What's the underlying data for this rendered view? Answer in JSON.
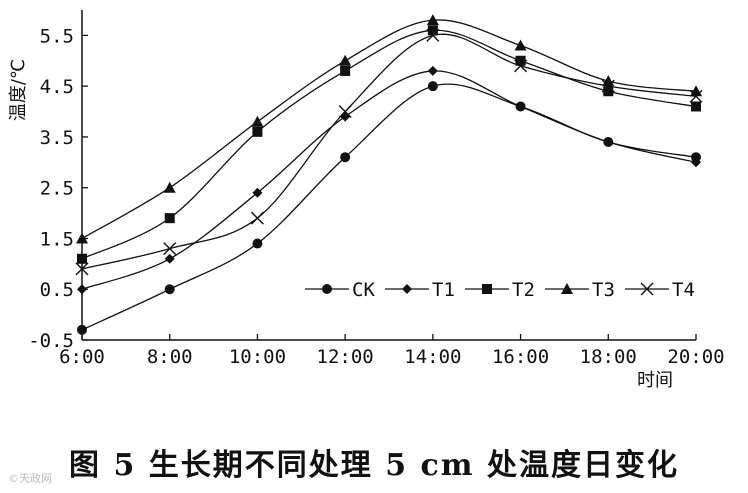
{
  "caption": "图 5   生长期不同处理 5 cm 处温度日变化",
  "watermark": "©天政网",
  "chart_data": {
    "type": "line",
    "title": "",
    "xlabel": "时间",
    "ylabel": "温度/℃",
    "categories": [
      "6:00",
      "8:00",
      "10:00",
      "12:00",
      "14:00",
      "16:00",
      "18:00",
      "20:00"
    ],
    "yticks": [
      "-0.5",
      "0.5",
      "1.5",
      "2.5",
      "3.5",
      "4.5",
      "5.5"
    ],
    "ylim": [
      -0.5,
      6.0
    ],
    "legend_position": "inside-lower-right",
    "series": [
      {
        "name": "CK",
        "marker": "circle",
        "values": [
          -0.3,
          0.5,
          1.4,
          3.1,
          4.5,
          4.1,
          3.4,
          3.1
        ]
      },
      {
        "name": "T1",
        "marker": "diamond",
        "values": [
          0.5,
          1.1,
          2.4,
          3.9,
          4.8,
          4.1,
          3.4,
          3.0
        ]
      },
      {
        "name": "T2",
        "marker": "square",
        "values": [
          1.1,
          1.9,
          3.6,
          4.8,
          5.6,
          5.0,
          4.4,
          4.1
        ]
      },
      {
        "name": "T3",
        "marker": "triangle",
        "values": [
          1.5,
          2.5,
          3.8,
          5.0,
          5.8,
          5.3,
          4.6,
          4.4
        ]
      },
      {
        "name": "T4",
        "marker": "x",
        "values": [
          0.9,
          1.3,
          1.9,
          4.0,
          5.5,
          4.9,
          4.5,
          4.3
        ]
      }
    ]
  }
}
